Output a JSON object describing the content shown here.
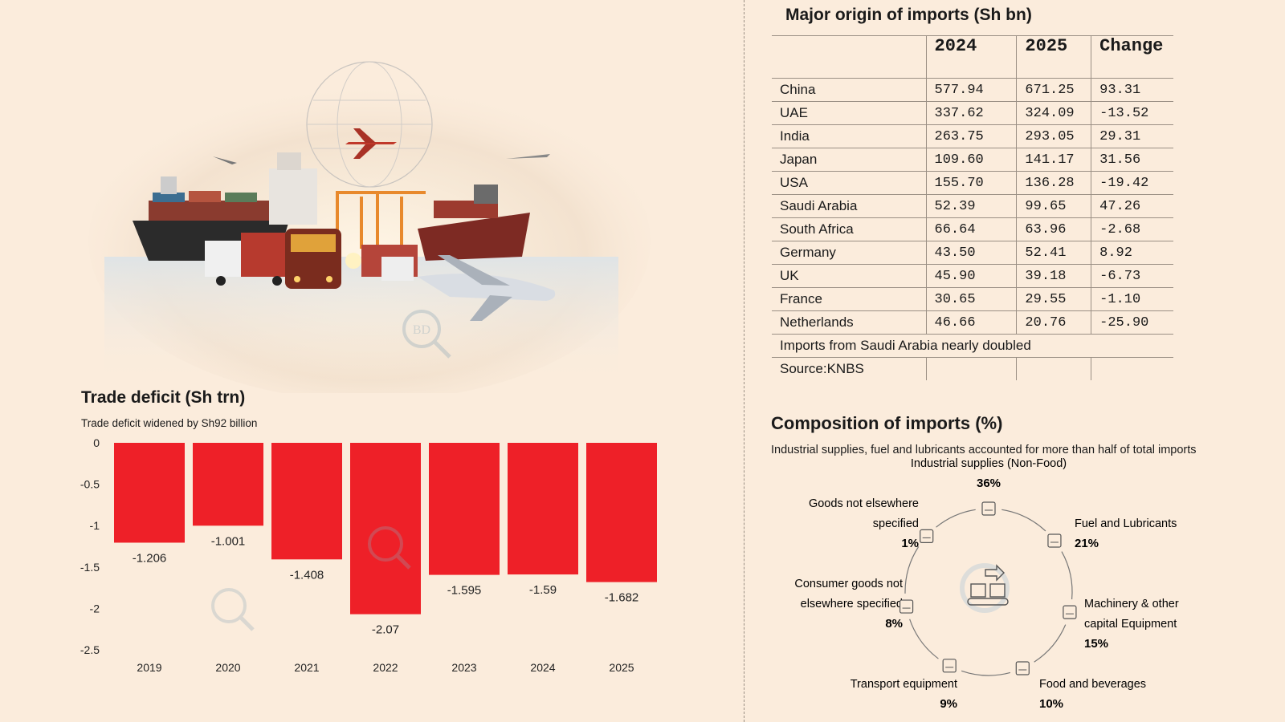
{
  "illustration": {
    "description_icon": "logistics-illustration-icon",
    "watermark": "BD"
  },
  "deficit": {
    "title": "Trade deficit (Sh trn)",
    "subtitle": "Trade deficit widened by Sh92 billion",
    "bar_color": "#ee2028"
  },
  "chart_data": {
    "type": "bar",
    "title": "Trade deficit (Sh trn)",
    "subtitle": "Trade deficit widened by Sh92 billion",
    "xlabel": "",
    "ylabel": "",
    "categories": [
      "2019",
      "2020",
      "2021",
      "2022",
      "2023",
      "2024",
      "2025"
    ],
    "values": [
      -1.206,
      -1.001,
      -1.408,
      -2.07,
      -1.595,
      -1.59,
      -1.682
    ],
    "value_labels": [
      "-1.206",
      "-1.001",
      "-1.408",
      "-2.07",
      "-1.595",
      "-1.59",
      "-1.682"
    ],
    "yticks": [
      "0",
      "-0.5",
      "-1",
      "-1.5",
      "-2",
      "-2.5"
    ],
    "ylim": [
      -2.5,
      0
    ],
    "grid": false
  },
  "imports": {
    "title": "Major origin of imports (Sh bn)",
    "headers": [
      "",
      "2024",
      "2025",
      "Change"
    ],
    "rows": [
      [
        "China",
        "577.94",
        "671.25",
        "93.31"
      ],
      [
        "UAE",
        "337.62",
        "324.09",
        "-13.52"
      ],
      [
        "India",
        "263.75",
        "293.05",
        "29.31"
      ],
      [
        "Japan",
        "109.60",
        "141.17",
        "31.56"
      ],
      [
        "USA",
        "155.70",
        "136.28",
        "-19.42"
      ],
      [
        "Saudi Arabia",
        "52.39",
        "99.65",
        "47.26"
      ],
      [
        "South Africa",
        "66.64",
        "63.96",
        "-2.68"
      ],
      [
        "Germany",
        "43.50",
        "52.41",
        "8.92"
      ],
      [
        "UK",
        "45.90",
        "39.18",
        "-6.73"
      ],
      [
        "France",
        "30.65",
        "29.55",
        "-1.10"
      ],
      [
        "Netherlands",
        "46.66",
        "20.76",
        "-25.90"
      ]
    ],
    "note": "Imports from Saudi Arabia nearly doubled",
    "source": "Source:KNBS"
  },
  "composition": {
    "title": "Composition of imports (%)",
    "subtitle": "Industrial supplies, fuel and lubricants accounted for more than half of total imports",
    "items": [
      {
        "label_lines": [
          "Industrial supplies (Non-Food)"
        ],
        "pct": "36%",
        "icon": "factory-icon"
      },
      {
        "label_lines": [
          "Fuel and Lubricants"
        ],
        "pct": "21%",
        "icon": "oil-barrel-icon"
      },
      {
        "label_lines": [
          "Machinery & other",
          "capital Equipment"
        ],
        "pct": "15%",
        "icon": "machinery-icon"
      },
      {
        "label_lines": [
          "Food and beverages"
        ],
        "pct": "10%",
        "icon": "food-icon"
      },
      {
        "label_lines": [
          "Transport equipment"
        ],
        "pct": "9%",
        "icon": "transport-icon"
      },
      {
        "label_lines": [
          "Consumer goods not",
          "elsewhere specified"
        ],
        "pct": "8%",
        "icon": "shopping-cart-icon"
      },
      {
        "label_lines": [
          "Goods not elsewhere",
          "specified"
        ],
        "pct": "1%",
        "icon": "unspecified-goods-icon"
      }
    ],
    "center_icon": "conveyor-boxes-icon"
  }
}
